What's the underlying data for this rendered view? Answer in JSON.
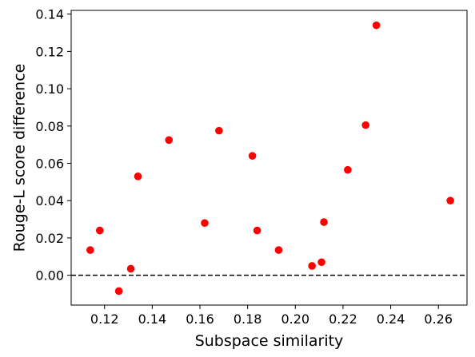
{
  "chart_data": {
    "type": "scatter",
    "xlabel": "Subspace similarity",
    "ylabel": "Rouge-L score difference",
    "xlim": [
      0.106,
      0.272
    ],
    "ylim": [
      -0.016,
      0.142
    ],
    "xticks": [
      0.12,
      0.14,
      0.16,
      0.18,
      0.2,
      0.22,
      0.24,
      0.26
    ],
    "xtick_labels": [
      "0.12",
      "0.14",
      "0.16",
      "0.18",
      "0.20",
      "0.22",
      "0.24",
      "0.26"
    ],
    "yticks": [
      0.0,
      0.02,
      0.04,
      0.06,
      0.08,
      0.1,
      0.12,
      0.14
    ],
    "ytick_labels": [
      "0.00",
      "0.02",
      "0.04",
      "0.06",
      "0.08",
      "0.10",
      "0.12",
      "0.14"
    ],
    "reference_line": {
      "y": 0.0,
      "style": "dashed",
      "color": "#000000"
    },
    "marker_color": "#ff0000",
    "grid": false,
    "points": [
      {
        "x": 0.114,
        "y": 0.0135
      },
      {
        "x": 0.118,
        "y": 0.024
      },
      {
        "x": 0.126,
        "y": -0.0085
      },
      {
        "x": 0.131,
        "y": 0.0035
      },
      {
        "x": 0.134,
        "y": 0.053
      },
      {
        "x": 0.147,
        "y": 0.0725
      },
      {
        "x": 0.162,
        "y": 0.028
      },
      {
        "x": 0.168,
        "y": 0.0775
      },
      {
        "x": 0.182,
        "y": 0.064
      },
      {
        "x": 0.184,
        "y": 0.024
      },
      {
        "x": 0.193,
        "y": 0.0135
      },
      {
        "x": 0.207,
        "y": 0.005
      },
      {
        "x": 0.211,
        "y": 0.007
      },
      {
        "x": 0.212,
        "y": 0.0285
      },
      {
        "x": 0.222,
        "y": 0.0565
      },
      {
        "x": 0.2295,
        "y": 0.0805
      },
      {
        "x": 0.234,
        "y": 0.134
      },
      {
        "x": 0.265,
        "y": 0.04
      }
    ]
  }
}
